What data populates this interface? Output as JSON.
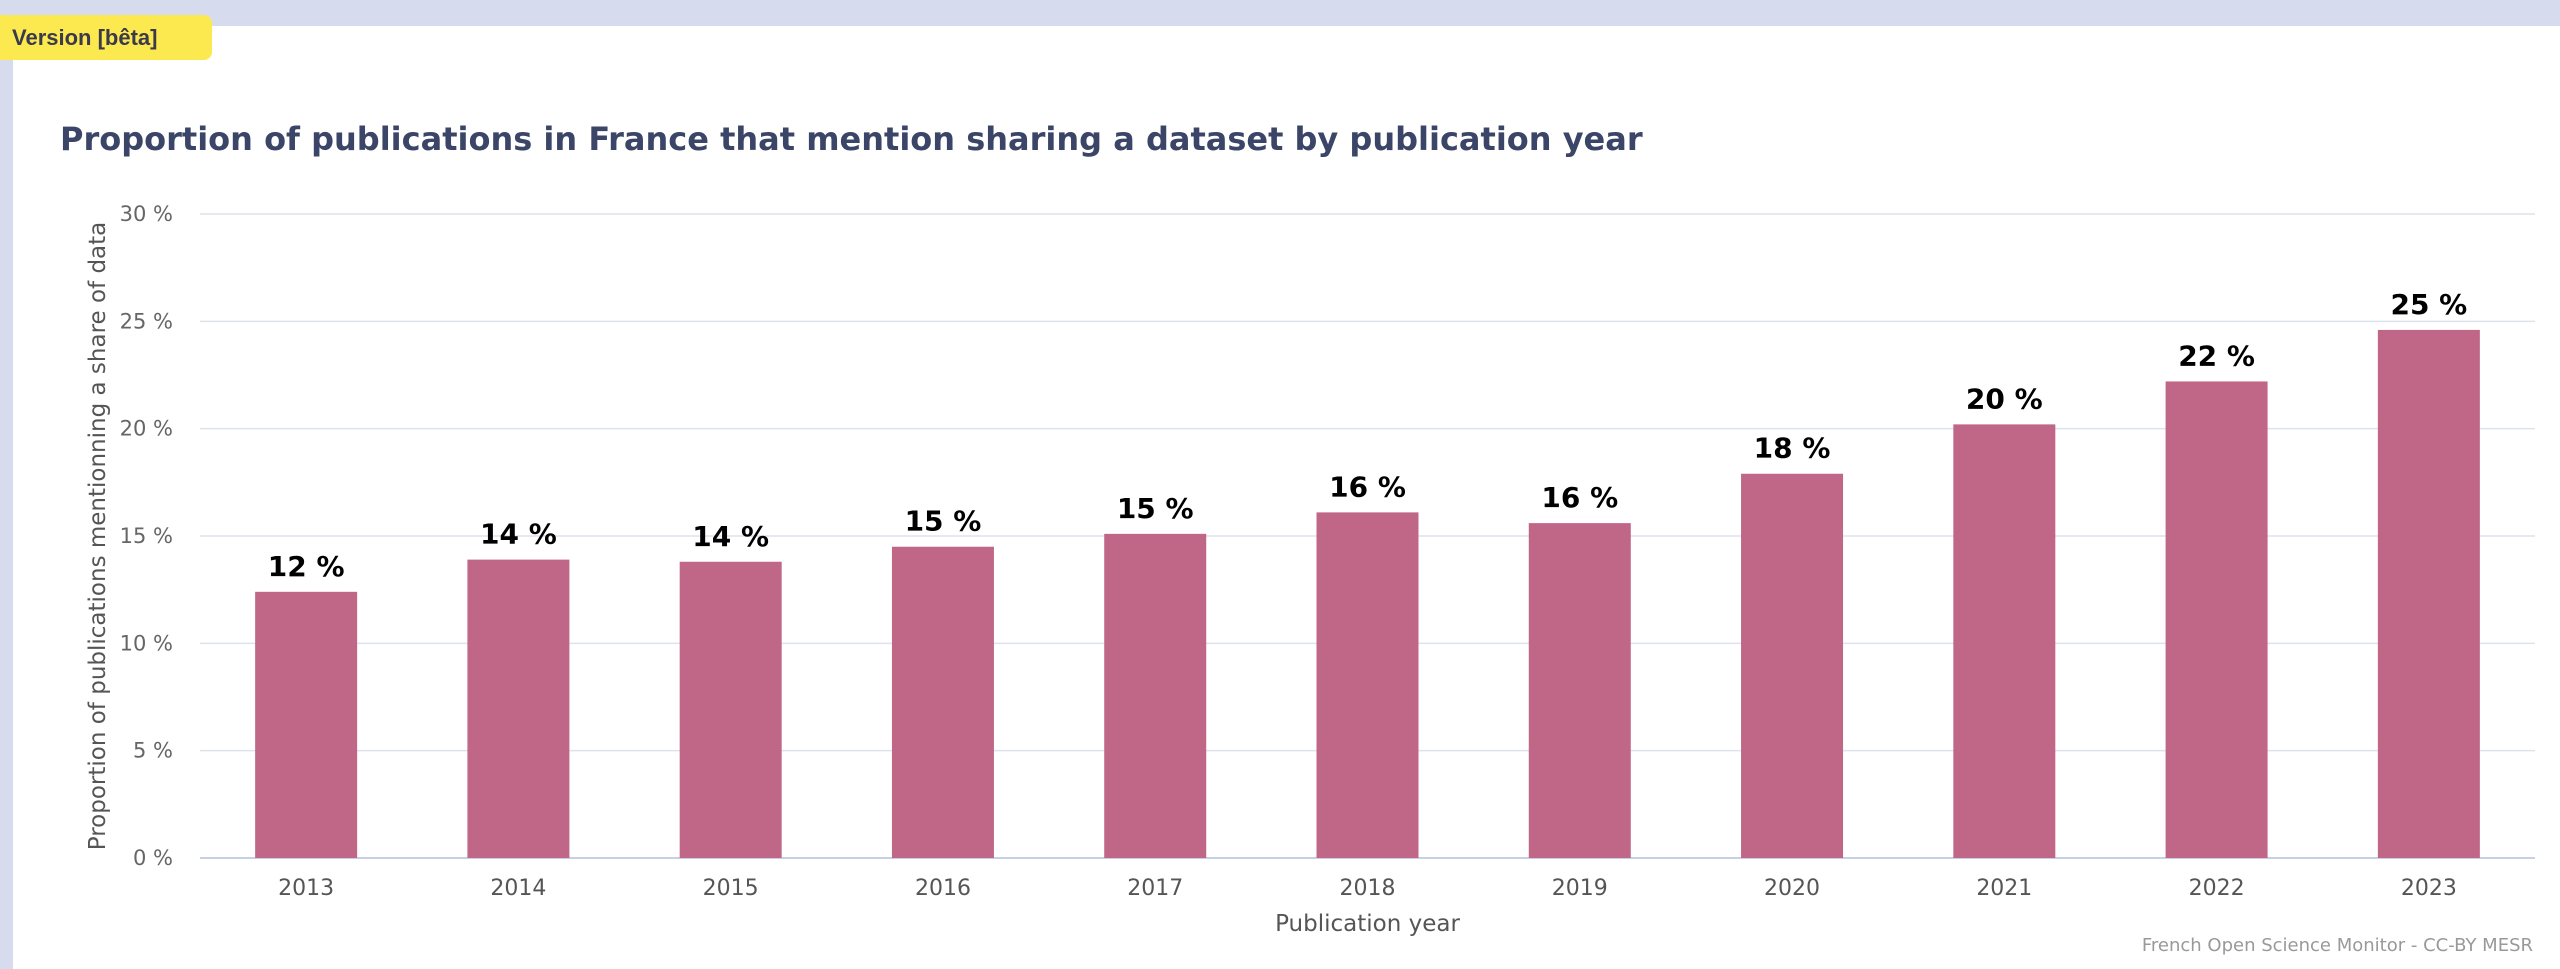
{
  "badge": {
    "label": "Version [bêta]"
  },
  "credit": "French Open Science Monitor - CC-BY MESR",
  "colors": {
    "bar": "#c06788",
    "background": "#ffffff",
    "frame": "#d6dbee",
    "badge": "#fce94f",
    "title": "#3b4567"
  },
  "chart_data": {
    "type": "bar",
    "title": "Proportion of publications in France that mention sharing a dataset by publication year",
    "xlabel": "Publication year",
    "ylabel": "Proportion of publications mentionning a share of data",
    "categories": [
      "2013",
      "2014",
      "2015",
      "2016",
      "2017",
      "2018",
      "2019",
      "2020",
      "2021",
      "2022",
      "2023"
    ],
    "values": [
      12.4,
      13.9,
      13.8,
      14.5,
      15.1,
      16.1,
      15.6,
      17.9,
      20.2,
      22.2,
      24.6
    ],
    "data_labels": [
      "12 %",
      "14 %",
      "14 %",
      "15 %",
      "15 %",
      "16 %",
      "16 %",
      "18 %",
      "20 %",
      "22 %",
      "25 %"
    ],
    "ylim": [
      0,
      30
    ],
    "yticks": [
      0,
      5,
      10,
      15,
      20,
      25,
      30
    ],
    "ytick_labels": [
      "0 %",
      "5 %",
      "10 %",
      "15 %",
      "20 %",
      "25 %",
      "30 %"
    ],
    "grid": true,
    "legend": "none"
  }
}
